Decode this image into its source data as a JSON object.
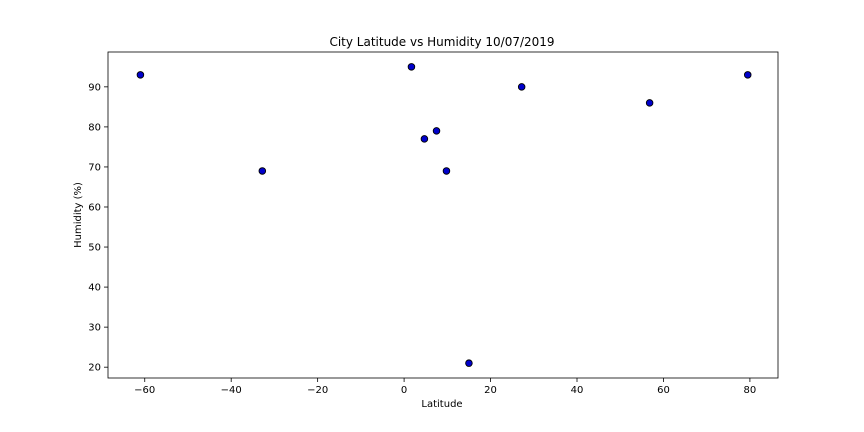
{
  "chart_data": {
    "type": "scatter",
    "title": "City Latitude vs Humidity 10/07/2019",
    "xlabel": "Latitude",
    "ylabel": "Humidity (%)",
    "xlim": [
      -68.5,
      86.5
    ],
    "ylim": [
      17.3,
      98.7
    ],
    "xticks": [
      -60,
      -40,
      -20,
      0,
      20,
      40,
      60,
      80
    ],
    "yticks": [
      20,
      30,
      40,
      50,
      60,
      70,
      80,
      90
    ],
    "grid": false,
    "marker_fill": "#0000cc",
    "marker_edge": "#000000",
    "points": [
      {
        "x": -61.0,
        "y": 93
      },
      {
        "x": -32.8,
        "y": 69
      },
      {
        "x": 1.7,
        "y": 95
      },
      {
        "x": 4.7,
        "y": 77
      },
      {
        "x": 7.5,
        "y": 79
      },
      {
        "x": 9.8,
        "y": 69
      },
      {
        "x": 15.0,
        "y": 21
      },
      {
        "x": 27.2,
        "y": 90
      },
      {
        "x": 56.8,
        "y": 86
      },
      {
        "x": 79.5,
        "y": 93
      }
    ]
  }
}
